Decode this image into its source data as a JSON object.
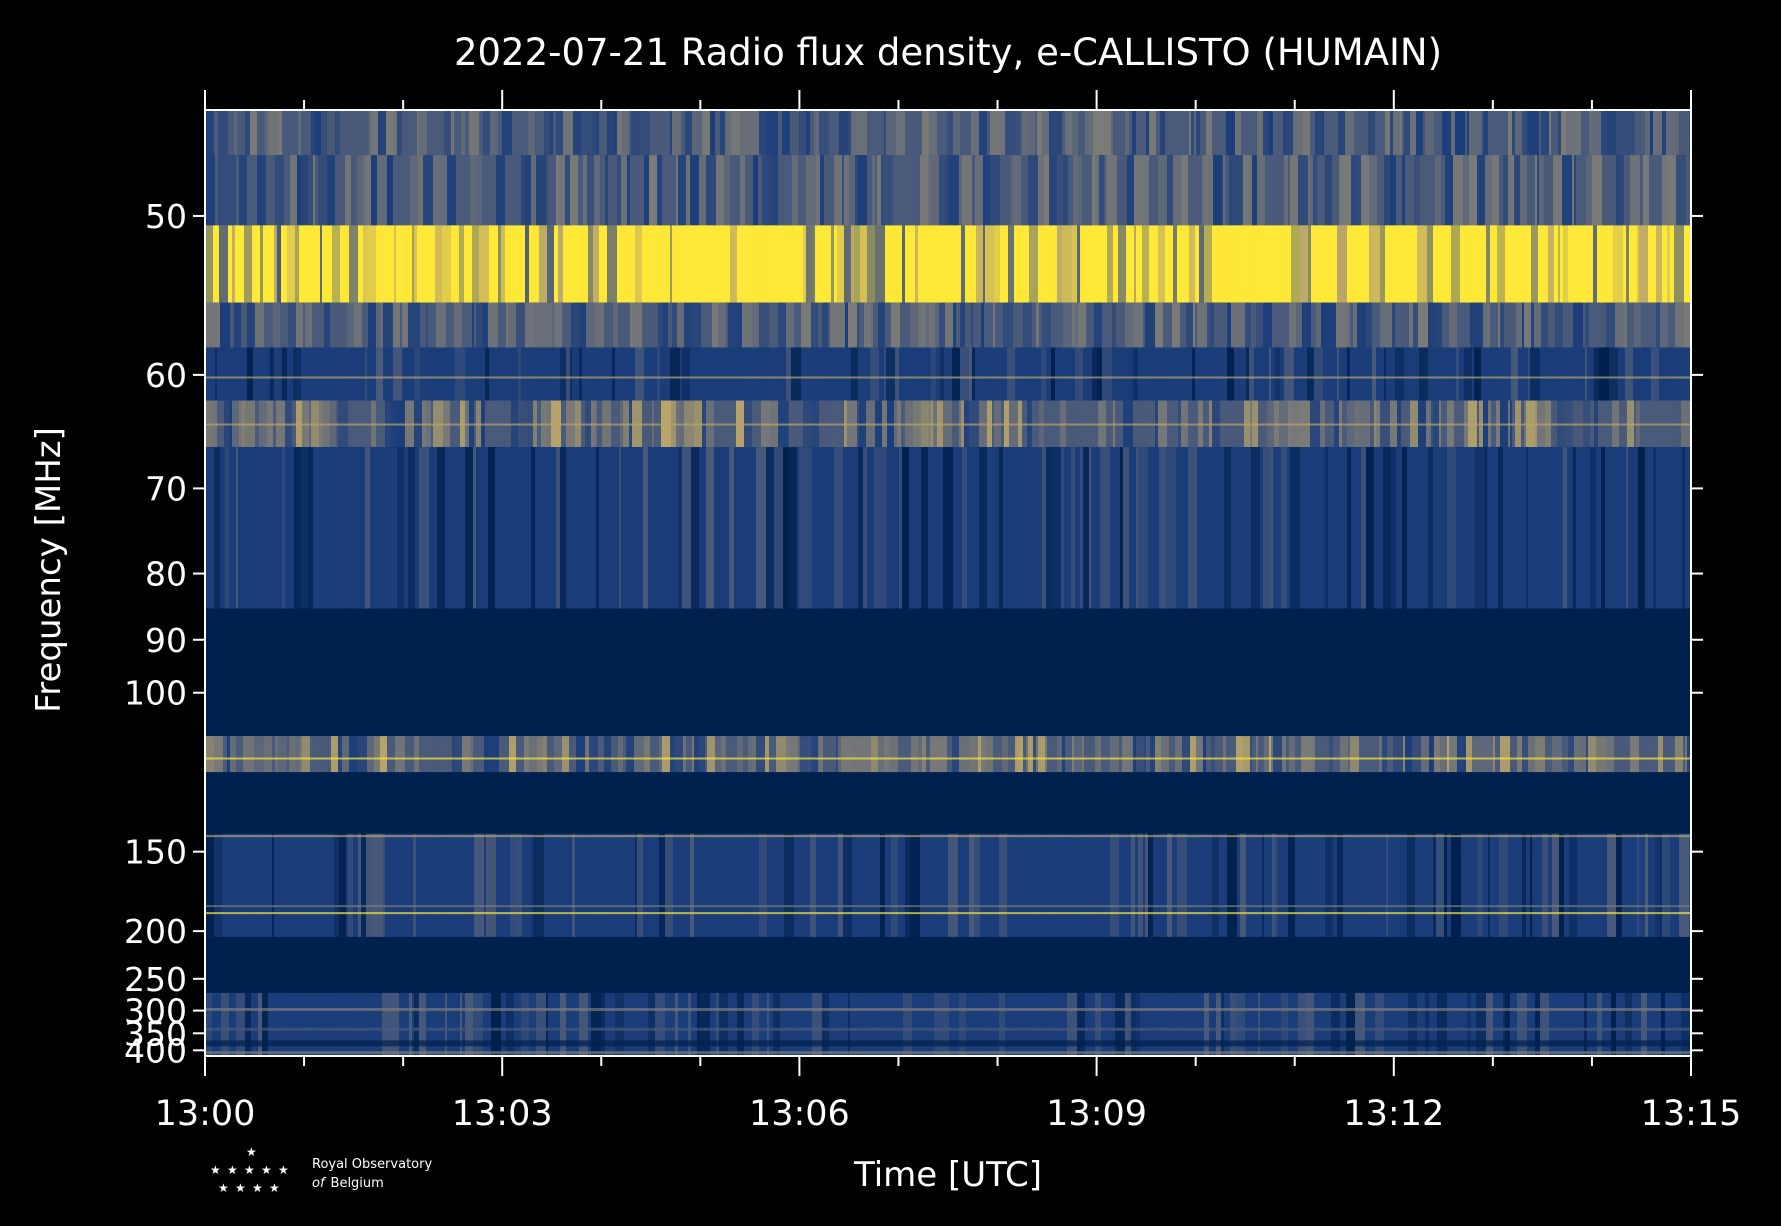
{
  "chart_data": {
    "type": "heatmap",
    "title": "2022-07-21 Radio flux density, e-CALLISTO (HUMAIN)",
    "xlabel": "Time [UTC]",
    "ylabel": "Frequency [MHz]",
    "x_ticks": [
      "13:00",
      "13:03",
      "13:06",
      "13:09",
      "13:12",
      "13:15"
    ],
    "y_ticks": [
      50,
      60,
      70,
      80,
      90,
      100,
      150,
      200,
      250,
      300,
      350,
      400
    ],
    "xlim": [
      "13:00",
      "13:15"
    ],
    "ylim": [
      45,
      420
    ],
    "y_scale": "reciprocal",
    "colormap": [
      "#00204d",
      "#1b3d7a",
      "#4a5a7a",
      "#7c7b78",
      "#b9a56a",
      "#fee838"
    ],
    "bands": [
      {
        "f_top": 45,
        "f_bottom": 47,
        "level": "mid",
        "note": "edge"
      },
      {
        "f_top": 47,
        "f_bottom": 50.5,
        "level": "mid"
      },
      {
        "f_top": 50.5,
        "f_bottom": 55,
        "level": "high"
      },
      {
        "f_top": 55,
        "f_bottom": 58,
        "level": "mid"
      },
      {
        "f_top": 58,
        "f_bottom": 62,
        "level": "low"
      },
      {
        "f_top": 62,
        "f_bottom": 66,
        "level": "mid-high"
      },
      {
        "f_top": 66,
        "f_bottom": 85,
        "level": "low"
      },
      {
        "f_top": 85,
        "f_bottom": 110,
        "level": "none"
      },
      {
        "f_top": 110,
        "f_bottom": 120,
        "level": "mid-high"
      },
      {
        "f_top": 120,
        "f_bottom": 142,
        "level": "none"
      },
      {
        "f_top": 142,
        "f_bottom": 205,
        "level": "low"
      },
      {
        "f_top": 205,
        "f_bottom": 245,
        "level": "none"
      },
      {
        "f_top": 245,
        "f_bottom": 270,
        "level": "none"
      },
      {
        "f_top": 270,
        "f_bottom": 420,
        "level": "low"
      }
    ],
    "grid": false,
    "legend": "none"
  },
  "logo": {
    "line1": "Royal Observatory",
    "line2_italic": "of",
    "line2": "Belgium"
  }
}
